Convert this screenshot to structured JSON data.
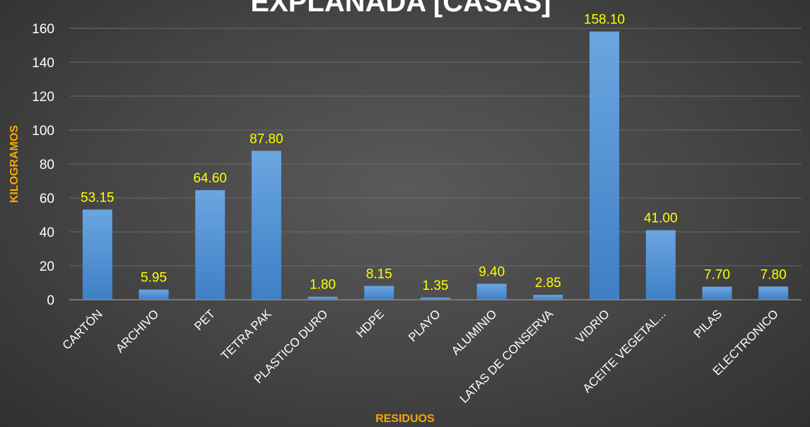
{
  "chart_data": {
    "type": "bar",
    "title": "EXPLANADA [CASAS]",
    "xlabel": "RESIDUOS",
    "ylabel": "KILOGRAMOS",
    "ylim": [
      0,
      160
    ],
    "yticks": [
      0,
      20,
      40,
      60,
      80,
      100,
      120,
      140,
      160
    ],
    "grid": true,
    "categories": [
      "CARTÓN",
      "ARCHIVO",
      "PET",
      "TETRA PAK",
      "PLASTICO DURO",
      "HDPE",
      "PLAYO",
      "ALUMINIO",
      "LATAS DE CONSERVA",
      "VIDRIO",
      "ACEITE VEGETAL...",
      "PILAS",
      "ELECTRONICO"
    ],
    "values": [
      53.15,
      5.95,
      64.6,
      87.8,
      1.8,
      8.15,
      1.35,
      9.4,
      2.85,
      158.1,
      41.0,
      7.7,
      7.8
    ],
    "data_labels": [
      "53.15",
      "5.95",
      "64.60",
      "87.80",
      "1.80",
      "8.15",
      "1.35",
      "9.40",
      "2.85",
      "158.10",
      "41.00",
      "7.70",
      "7.80"
    ],
    "colors": {
      "bar_top": "#6aa6e0",
      "bar_bottom": "#3f7fc6",
      "data_label": "#ffff00",
      "axis_title": "#f5a800",
      "text": "#ffffff",
      "grid": "#6a6a6a"
    }
  }
}
